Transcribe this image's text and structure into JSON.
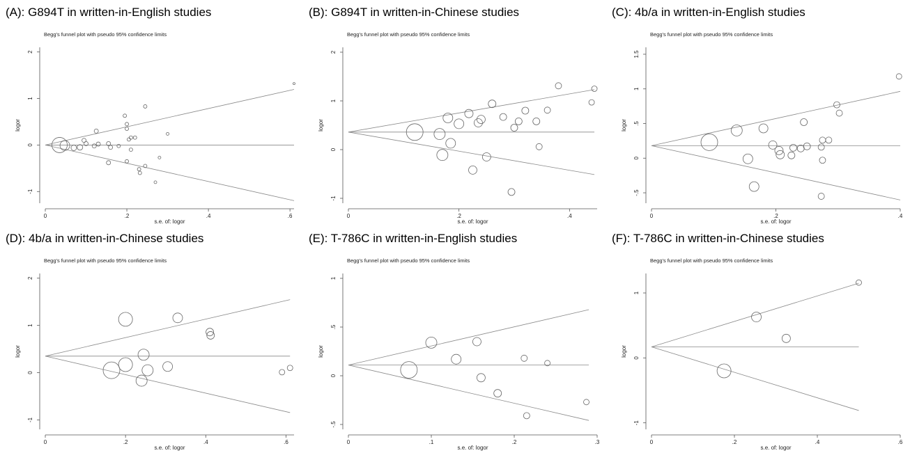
{
  "chart_data": [
    {
      "type": "scatter",
      "panel_title": "(A): G894T in written-in-English studies",
      "subtitle": "Begg's funnel plot with pseudo 95% confidence limits",
      "xlabel": "s.e. of: logor",
      "ylabel": "logor",
      "xlim": [
        0,
        0.61
      ],
      "ylim": [
        -1.25,
        2.1
      ],
      "xticks": [
        0,
        0.2,
        0.4,
        0.6
      ],
      "xtick_labels": [
        "0",
        ".2",
        ".4",
        ".6"
      ],
      "yticks": [
        -1,
        0,
        1,
        2
      ],
      "ytick_labels": [
        "-1",
        "0",
        "1",
        "2"
      ],
      "pooled_logor": 0.0,
      "se_max": 0.61,
      "points": [
        {
          "x": 0.035,
          "y": 0.0,
          "r": 11
        },
        {
          "x": 0.048,
          "y": -0.01,
          "r": 7
        },
        {
          "x": 0.07,
          "y": -0.06,
          "r": 4
        },
        {
          "x": 0.085,
          "y": -0.05,
          "r": 4
        },
        {
          "x": 0.095,
          "y": 0.1,
          "r": 3
        },
        {
          "x": 0.1,
          "y": 0.03,
          "r": 3
        },
        {
          "x": 0.125,
          "y": 0.3,
          "r": 3
        },
        {
          "x": 0.13,
          "y": 0.02,
          "r": 3
        },
        {
          "x": 0.12,
          "y": -0.02,
          "r": 3
        },
        {
          "x": 0.155,
          "y": 0.03,
          "r": 3
        },
        {
          "x": 0.16,
          "y": -0.05,
          "r": 3
        },
        {
          "x": 0.155,
          "y": -0.38,
          "r": 3
        },
        {
          "x": 0.18,
          "y": -0.02,
          "r": 2.5
        },
        {
          "x": 0.195,
          "y": 0.63,
          "r": 2.5
        },
        {
          "x": 0.2,
          "y": 0.45,
          "r": 2.5
        },
        {
          "x": 0.2,
          "y": 0.35,
          "r": 2.5
        },
        {
          "x": 0.205,
          "y": 0.12,
          "r": 2.5
        },
        {
          "x": 0.21,
          "y": 0.16,
          "r": 2.5
        },
        {
          "x": 0.21,
          "y": -0.1,
          "r": 2.5
        },
        {
          "x": 0.2,
          "y": -0.35,
          "r": 2.5
        },
        {
          "x": 0.22,
          "y": 0.16,
          "r": 2.5
        },
        {
          "x": 0.23,
          "y": -0.52,
          "r": 2.5
        },
        {
          "x": 0.232,
          "y": -0.6,
          "r": 2.5
        },
        {
          "x": 0.245,
          "y": -0.45,
          "r": 2.5
        },
        {
          "x": 0.245,
          "y": 0.83,
          "r": 2.5
        },
        {
          "x": 0.27,
          "y": -0.8,
          "r": 2
        },
        {
          "x": 0.28,
          "y": -0.27,
          "r": 2
        },
        {
          "x": 0.3,
          "y": 0.24,
          "r": 2
        },
        {
          "x": 0.61,
          "y": 1.32,
          "r": 1.5
        }
      ]
    },
    {
      "type": "scatter",
      "panel_title": "(B): G894T in written-in-Chinese studies",
      "subtitle": "Begg's funnel plot with pseudo 95% confidence limits",
      "xlabel": "s.e. of: logor",
      "ylabel": "logor",
      "xlim": [
        0,
        0.45
      ],
      "ylim": [
        -1.1,
        2.1
      ],
      "xticks": [
        0,
        0.2,
        0.4
      ],
      "xtick_labels": [
        "0",
        ".2",
        ".4"
      ],
      "yticks": [
        -1,
        0,
        1,
        2
      ],
      "ytick_labels": [
        "-1",
        "0",
        "1",
        "2"
      ],
      "pooled_logor": 0.36,
      "se_max": 0.445,
      "points": [
        {
          "x": 0.12,
          "y": 0.36,
          "r": 12
        },
        {
          "x": 0.165,
          "y": 0.32,
          "r": 8
        },
        {
          "x": 0.17,
          "y": -0.11,
          "r": 8
        },
        {
          "x": 0.18,
          "y": 0.65,
          "r": 7
        },
        {
          "x": 0.185,
          "y": 0.13,
          "r": 7
        },
        {
          "x": 0.2,
          "y": 0.53,
          "r": 7
        },
        {
          "x": 0.218,
          "y": 0.74,
          "r": 6
        },
        {
          "x": 0.225,
          "y": -0.42,
          "r": 6
        },
        {
          "x": 0.235,
          "y": 0.55,
          "r": 6
        },
        {
          "x": 0.24,
          "y": 0.62,
          "r": 6
        },
        {
          "x": 0.25,
          "y": -0.15,
          "r": 6
        },
        {
          "x": 0.26,
          "y": 0.94,
          "r": 5.5
        },
        {
          "x": 0.28,
          "y": 0.67,
          "r": 5
        },
        {
          "x": 0.3,
          "y": 0.45,
          "r": 5
        },
        {
          "x": 0.308,
          "y": 0.58,
          "r": 5
        },
        {
          "x": 0.32,
          "y": 0.8,
          "r": 5
        },
        {
          "x": 0.295,
          "y": -0.87,
          "r": 5
        },
        {
          "x": 0.34,
          "y": 0.58,
          "r": 5
        },
        {
          "x": 0.345,
          "y": 0.06,
          "r": 4.5
        },
        {
          "x": 0.36,
          "y": 0.81,
          "r": 4.5
        },
        {
          "x": 0.38,
          "y": 1.31,
          "r": 4.5
        },
        {
          "x": 0.44,
          "y": 0.97,
          "r": 4
        },
        {
          "x": 0.445,
          "y": 1.25,
          "r": 4
        }
      ]
    },
    {
      "type": "scatter",
      "panel_title": "(C): 4b/a in written-in-English studies",
      "subtitle": "Begg's funnel plot with pseudo 95% confidence limits",
      "xlabel": "s.e. of: logor",
      "ylabel": "logor",
      "xlim": [
        0,
        0.4
      ],
      "ylim": [
        -0.65,
        1.6
      ],
      "xticks": [
        0,
        0.2,
        0.4
      ],
      "xtick_labels": [
        "0",
        ".2",
        ".4"
      ],
      "yticks": [
        -0.5,
        0,
        0.5,
        1,
        1.5
      ],
      "ytick_labels": [
        "-.5",
        "0",
        ".5",
        "1",
        "1.5"
      ],
      "pooled_logor": 0.18,
      "se_max": 0.4,
      "points": [
        {
          "x": 0.093,
          "y": 0.23,
          "r": 12
        },
        {
          "x": 0.137,
          "y": 0.4,
          "r": 8
        },
        {
          "x": 0.155,
          "y": -0.01,
          "r": 7
        },
        {
          "x": 0.165,
          "y": -0.41,
          "r": 7
        },
        {
          "x": 0.18,
          "y": 0.43,
          "r": 6.5
        },
        {
          "x": 0.195,
          "y": 0.19,
          "r": 6
        },
        {
          "x": 0.205,
          "y": 0.11,
          "r": 6
        },
        {
          "x": 0.207,
          "y": 0.05,
          "r": 6
        },
        {
          "x": 0.225,
          "y": 0.04,
          "r": 5
        },
        {
          "x": 0.228,
          "y": 0.15,
          "r": 5
        },
        {
          "x": 0.24,
          "y": 0.14,
          "r": 5
        },
        {
          "x": 0.245,
          "y": 0.52,
          "r": 5
        },
        {
          "x": 0.25,
          "y": 0.17,
          "r": 5
        },
        {
          "x": 0.273,
          "y": 0.16,
          "r": 4.5
        },
        {
          "x": 0.275,
          "y": 0.26,
          "r": 4.5
        },
        {
          "x": 0.275,
          "y": -0.03,
          "r": 4.5
        },
        {
          "x": 0.273,
          "y": -0.55,
          "r": 4.5
        },
        {
          "x": 0.285,
          "y": 0.26,
          "r": 4.5
        },
        {
          "x": 0.298,
          "y": 0.77,
          "r": 4.5
        },
        {
          "x": 0.302,
          "y": 0.65,
          "r": 4.5
        },
        {
          "x": 0.398,
          "y": 1.18,
          "r": 4
        }
      ]
    },
    {
      "type": "scatter",
      "panel_title": "(D): 4b/a in written-in-Chinese studies",
      "subtitle": "Begg's funnel plot with pseudo 95% confidence limits",
      "xlabel": "s.e. of: logor",
      "ylabel": "logor",
      "xlim": [
        0,
        0.62
      ],
      "ylim": [
        -1.2,
        2.1
      ],
      "xticks": [
        0,
        0.2,
        0.4,
        0.6
      ],
      "xtick_labels": [
        "0",
        ".2",
        ".4",
        ".6"
      ],
      "yticks": [
        -1,
        0,
        1,
        2
      ],
      "ytick_labels": [
        "-1",
        "0",
        "1",
        "2"
      ],
      "pooled_logor": 0.35,
      "se_max": 0.61,
      "points": [
        {
          "x": 0.165,
          "y": 0.05,
          "r": 12
        },
        {
          "x": 0.2,
          "y": 1.13,
          "r": 10
        },
        {
          "x": 0.2,
          "y": 0.17,
          "r": 10
        },
        {
          "x": 0.24,
          "y": -0.17,
          "r": 8
        },
        {
          "x": 0.245,
          "y": 0.38,
          "r": 8
        },
        {
          "x": 0.255,
          "y": 0.05,
          "r": 8
        },
        {
          "x": 0.305,
          "y": 0.13,
          "r": 7
        },
        {
          "x": 0.33,
          "y": 1.16,
          "r": 7
        },
        {
          "x": 0.41,
          "y": 0.86,
          "r": 5.5
        },
        {
          "x": 0.412,
          "y": 0.79,
          "r": 5.5
        },
        {
          "x": 0.59,
          "y": 0.01,
          "r": 4
        },
        {
          "x": 0.61,
          "y": 0.1,
          "r": 4
        }
      ]
    },
    {
      "type": "scatter",
      "panel_title": "(E): T-786C in written-in-English studies",
      "subtitle": "Begg's funnel plot with pseudo 95% confidence limits",
      "xlabel": "s.e. of: logor",
      "ylabel": "logor",
      "xlim": [
        0,
        0.3
      ],
      "ylim": [
        -0.55,
        1.05
      ],
      "xticks": [
        0,
        0.1,
        0.2,
        0.3
      ],
      "xtick_labels": [
        "0",
        ".1",
        ".2",
        ".3"
      ],
      "yticks": [
        -0.5,
        0,
        0.5,
        1
      ],
      "ytick_labels": [
        "-.5",
        "0",
        ".5",
        "1"
      ],
      "pooled_logor": 0.11,
      "se_max": 0.29,
      "points": [
        {
          "x": 0.073,
          "y": 0.06,
          "r": 12
        },
        {
          "x": 0.1,
          "y": 0.34,
          "r": 8
        },
        {
          "x": 0.13,
          "y": 0.17,
          "r": 7
        },
        {
          "x": 0.155,
          "y": 0.35,
          "r": 6
        },
        {
          "x": 0.16,
          "y": -0.02,
          "r": 6
        },
        {
          "x": 0.18,
          "y": -0.18,
          "r": 5.5
        },
        {
          "x": 0.212,
          "y": 0.18,
          "r": 4.5
        },
        {
          "x": 0.215,
          "y": -0.41,
          "r": 4.5
        },
        {
          "x": 0.24,
          "y": 0.13,
          "r": 4
        },
        {
          "x": 0.287,
          "y": -0.27,
          "r": 4
        }
      ]
    },
    {
      "type": "scatter",
      "panel_title": "(F): T-786C in written-in-Chinese studies",
      "subtitle": "Begg's funnel plot with pseudo 95% confidence limits",
      "xlabel": "s.e. of: logor",
      "ylabel": "logor",
      "xlim": [
        0,
        0.6
      ],
      "ylim": [
        -1.1,
        1.3
      ],
      "xticks": [
        0,
        0.2,
        0.4,
        0.6
      ],
      "xtick_labels": [
        "0",
        ".2",
        ".4",
        ".6"
      ],
      "yticks": [
        -1,
        0,
        1
      ],
      "ytick_labels": [
        "-1",
        "0",
        "1"
      ],
      "pooled_logor": 0.17,
      "se_max": 0.5,
      "points": [
        {
          "x": 0.175,
          "y": -0.2,
          "r": 10
        },
        {
          "x": 0.253,
          "y": 0.63,
          "r": 7
        },
        {
          "x": 0.325,
          "y": 0.3,
          "r": 6
        },
        {
          "x": 0.5,
          "y": 1.16,
          "r": 4
        }
      ]
    }
  ]
}
